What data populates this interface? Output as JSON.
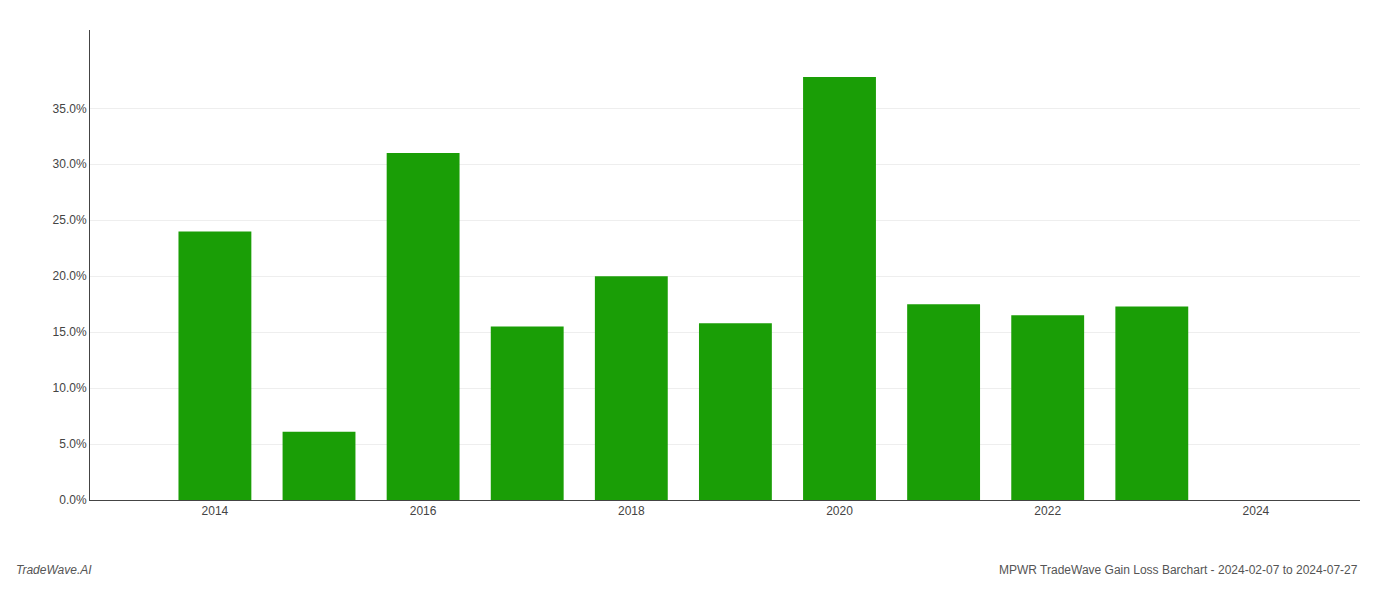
{
  "chart_data": {
    "type": "bar",
    "x": [
      2014,
      2015,
      2016,
      2017,
      2018,
      2019,
      2020,
      2021,
      2022,
      2023
    ],
    "values": [
      0.24,
      0.061,
      0.31,
      0.155,
      0.2,
      0.158,
      0.378,
      0.175,
      0.165,
      0.173
    ],
    "color": "#1a9e06",
    "xlim": [
      2012.8,
      2025.0
    ],
    "xticks": [
      2014,
      2016,
      2018,
      2020,
      2022,
      2024
    ],
    "ylim": [
      0,
      0.42
    ],
    "yticks": [
      {
        "value": 0.0,
        "label": "0.0%"
      },
      {
        "value": 0.05,
        "label": "5.0%"
      },
      {
        "value": 0.1,
        "label": "10.0%"
      },
      {
        "value": 0.15,
        "label": "15.0%"
      },
      {
        "value": 0.2,
        "label": "20.0%"
      },
      {
        "value": 0.25,
        "label": "25.0%"
      },
      {
        "value": 0.3,
        "label": "30.0%"
      },
      {
        "value": 0.35,
        "label": "35.0%"
      }
    ],
    "grid": true,
    "annotations": [
      "TradeWave.AI",
      "MPWR TradeWave Gain Loss Barchart - 2024-02-07 to 2024-07-27"
    ]
  }
}
